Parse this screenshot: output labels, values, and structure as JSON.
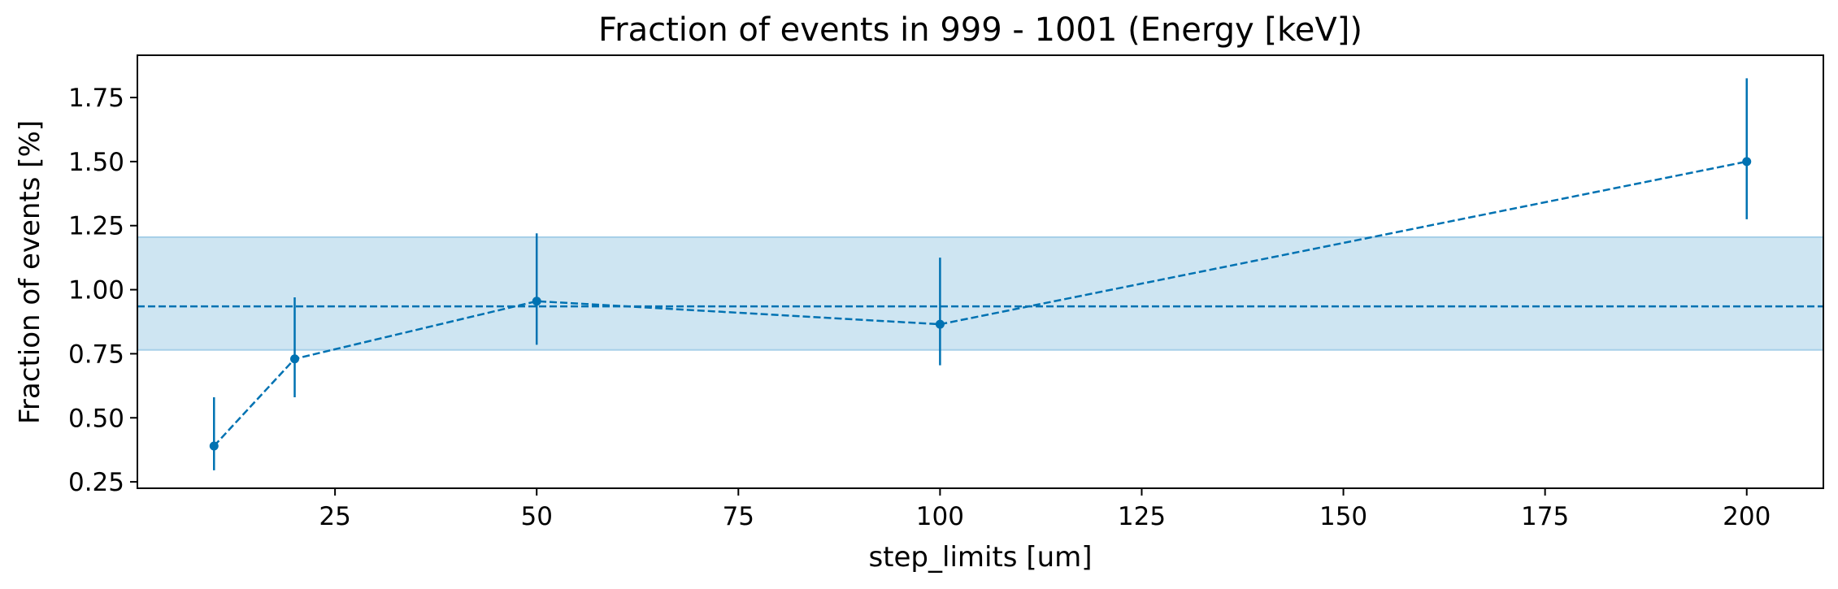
{
  "chart_data": {
    "type": "line",
    "title": "Fraction of events in 999 - 1001 (Energy [keV])",
    "xlabel": "step_limits [um]",
    "ylabel": "Fraction of events [%]",
    "xlim": [
      0.5,
      209.5
    ],
    "ylim": [
      0.225,
      1.915
    ],
    "xticks": [
      25,
      50,
      75,
      100,
      125,
      150,
      175,
      200
    ],
    "yticks": [
      0.25,
      0.5,
      0.75,
      1.0,
      1.25,
      1.5,
      1.75
    ],
    "ytick_labels": [
      "0.25",
      "0.50",
      "0.75",
      "1.00",
      "1.25",
      "1.50",
      "1.75"
    ],
    "grid": false,
    "legend": "none",
    "series": [
      {
        "x": [
          10,
          20,
          50,
          100,
          200
        ],
        "y": [
          0.39,
          0.73,
          0.955,
          0.865,
          1.5
        ],
        "yerr_low": [
          0.295,
          0.58,
          0.785,
          0.705,
          1.275
        ],
        "yerr_high": [
          0.58,
          0.97,
          1.22,
          1.125,
          1.825
        ],
        "line_style": "dashed",
        "marker": "circle",
        "color": "#0072b2"
      }
    ],
    "reference_line": {
      "y": 0.935,
      "style": "dashed",
      "color": "#0072b2"
    },
    "reference_band": {
      "y_low": 0.765,
      "y_high": 1.205,
      "color": "#a6cfe8"
    }
  }
}
